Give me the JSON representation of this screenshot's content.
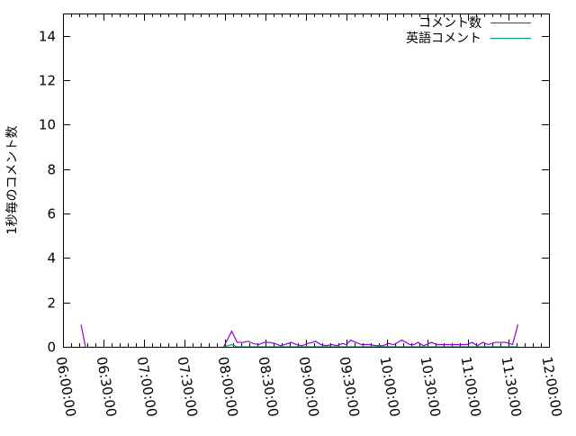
{
  "chart_data": {
    "type": "line",
    "title": "",
    "xlabel": "",
    "ylabel": "1秒毎のコメント数",
    "xlim": [
      "06:00:00",
      "12:00:00"
    ],
    "ylim": [
      0,
      15
    ],
    "x_ticks": [
      "06:00:00",
      "06:30:00",
      "07:00:00",
      "07:30:00",
      "08:00:00",
      "08:30:00",
      "09:00:00",
      "09:30:00",
      "10:00:00",
      "10:30:00",
      "11:00:00",
      "11:30:00",
      "12:00:00"
    ],
    "y_ticks": [
      "0",
      "2",
      "4",
      "6",
      "8",
      "10",
      "12",
      "14"
    ],
    "legend_position": "top-right",
    "grid": false,
    "series": [
      {
        "name": "コメント数",
        "color": "#9400d3",
        "points": [
          [
            "06:13:20",
            1
          ],
          [
            "06:16:40",
            0
          ],
          [
            "07:59:00",
            0
          ],
          [
            "08:05:00",
            0.7
          ],
          [
            "08:09:00",
            0.2
          ],
          [
            "08:14:00",
            0.2
          ],
          [
            "08:17:00",
            0.25
          ],
          [
            "08:21:00",
            0.15
          ],
          [
            "08:25:00",
            0.1
          ],
          [
            "08:29:00",
            0.2
          ],
          [
            "08:33:00",
            0.2
          ],
          [
            "08:37:00",
            0.15
          ],
          [
            "08:41:00",
            0.05
          ],
          [
            "08:44:00",
            0.1
          ],
          [
            "08:49:00",
            0.2
          ],
          [
            "08:53:00",
            0.1
          ],
          [
            "08:57:00",
            0.05
          ],
          [
            "09:01:00",
            0.15
          ],
          [
            "09:05:00",
            0.2
          ],
          [
            "09:07:00",
            0.25
          ],
          [
            "09:11:00",
            0.1
          ],
          [
            "09:15:00",
            0.05
          ],
          [
            "09:19:00",
            0.1
          ],
          [
            "09:23:00",
            0.05
          ],
          [
            "09:27:00",
            0.15
          ],
          [
            "09:30:00",
            0.1
          ],
          [
            "09:33:00",
            0.3
          ],
          [
            "09:37:00",
            0.2
          ],
          [
            "09:41:00",
            0.1
          ],
          [
            "09:47:00",
            0.1
          ],
          [
            "09:52:00",
            0.05
          ],
          [
            "09:57:00",
            0.05
          ],
          [
            "10:01:00",
            0.15
          ],
          [
            "10:05:00",
            0.1
          ],
          [
            "10:11:00",
            0.3
          ],
          [
            "10:17:00",
            0.1
          ],
          [
            "10:20:00",
            0.1
          ],
          [
            "10:23:00",
            0.2
          ],
          [
            "10:27:00",
            0.05
          ],
          [
            "10:33:00",
            0.2
          ],
          [
            "10:37:00",
            0.1
          ],
          [
            "10:40:00",
            0.1
          ],
          [
            "10:47:00",
            0.1
          ],
          [
            "10:53:00",
            0.1
          ],
          [
            "10:59:00",
            0.1
          ],
          [
            "11:03:00",
            0.2
          ],
          [
            "11:07:00",
            0.05
          ],
          [
            "11:11:00",
            0.2
          ],
          [
            "11:15:00",
            0.1
          ],
          [
            "11:20:00",
            0.2
          ],
          [
            "11:28:00",
            0.2
          ],
          [
            "11:33:00",
            0.1
          ],
          [
            "11:37:00",
            1.0
          ]
        ]
      },
      {
        "name": "英語コメント",
        "color": "#009e73",
        "points": [
          [
            "07:59:00",
            0
          ],
          [
            "08:05:00",
            0.1
          ],
          [
            "08:09:00",
            0
          ],
          [
            "08:37:00",
            0
          ],
          [
            "08:41:00",
            0
          ],
          [
            "09:30:00",
            0
          ],
          [
            "10:30:00",
            0
          ],
          [
            "11:30:00",
            0
          ],
          [
            "11:37:00",
            0
          ]
        ]
      }
    ]
  }
}
